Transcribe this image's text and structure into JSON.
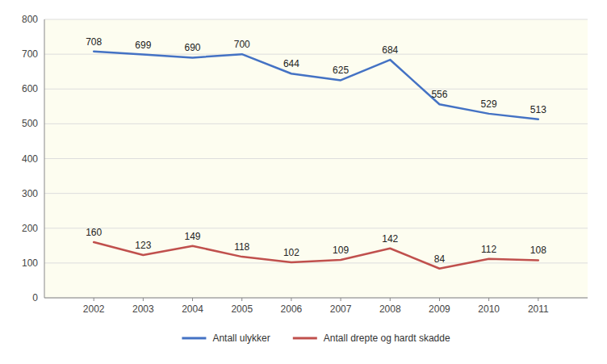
{
  "chart_data": {
    "type": "line",
    "x": [
      2002,
      2003,
      2004,
      2005,
      2006,
      2007,
      2008,
      2009,
      2010,
      2011
    ],
    "xlim": [
      2001,
      2012
    ],
    "xticks": [
      2002,
      2003,
      2004,
      2005,
      2006,
      2007,
      2008,
      2009,
      2010,
      2011
    ],
    "series": [
      {
        "name": "Antall ulykker",
        "color": "#4472C4",
        "values": [
          708,
          699,
          690,
          700,
          644,
          625,
          684,
          556,
          529,
          513
        ]
      },
      {
        "name": "Antall drepte og hardt skadde",
        "color": "#C0504D",
        "values": [
          160,
          123,
          149,
          118,
          102,
          109,
          142,
          84,
          112,
          108
        ]
      }
    ],
    "ylim": [
      0,
      800
    ],
    "yticks": [
      0,
      100,
      200,
      300,
      400,
      500,
      600,
      700,
      800
    ],
    "grid": true,
    "data_labels": true,
    "legend": "bottom"
  }
}
